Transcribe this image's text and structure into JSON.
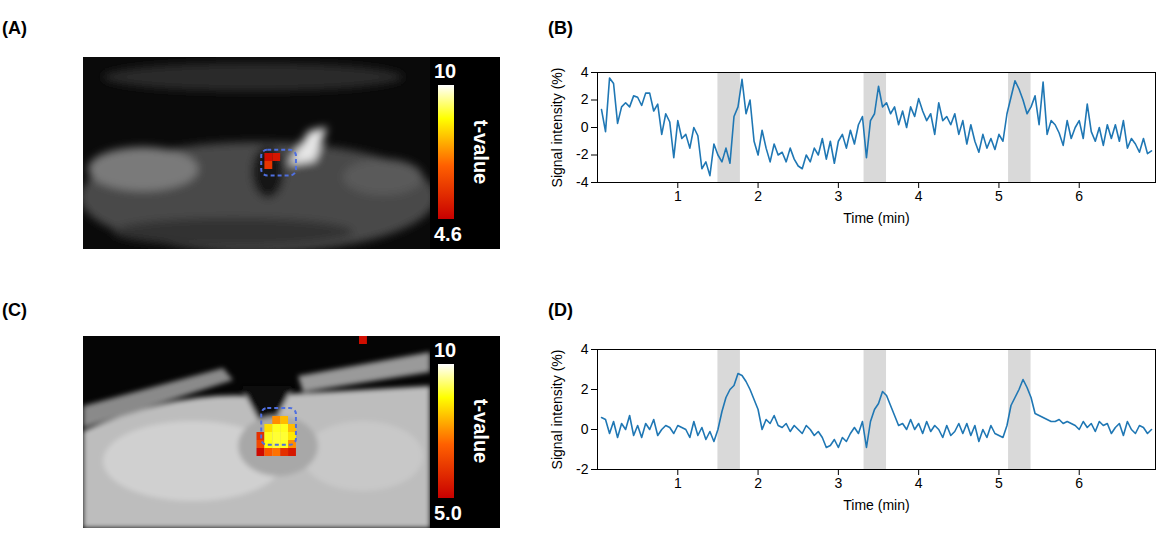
{
  "chart_data": [
    {
      "type": "image",
      "title": "(A)",
      "xlim": [
        0,
        44
      ],
      "ylim": [
        0,
        24
      ],
      "tick_labels": false,
      "cells": [
        {
          "col": 23,
          "row": 13,
          "t": 5.8
        },
        {
          "col": 23,
          "row": 12,
          "t": 4.9
        },
        {
          "col": 24,
          "row": 12,
          "t": 5.1
        }
      ],
      "roi": {
        "x": [
          22.6,
          27
        ],
        "y": [
          11.6,
          14.8
        ]
      },
      "colorbar": {
        "label": "t-value",
        "range": [
          4.6,
          10
        ],
        "ticks": [
          4.6,
          10
        ]
      }
    },
    {
      "type": "line",
      "title": "(B)",
      "xlabel": "Time (min)",
      "ylabel": "Signal intensity (%)",
      "xlim": [
        0,
        6.95
      ],
      "xticks": [
        1,
        2,
        3,
        4,
        5,
        6
      ],
      "ylim": [
        -4,
        4
      ],
      "yticks": [
        -4,
        -2,
        0,
        2,
        4
      ],
      "color": "#1f77b4",
      "shaded_intervals": [
        [
          1.5,
          1.78
        ],
        [
          3.32,
          3.6
        ],
        [
          5.12,
          5.4
        ]
      ],
      "x": [
        0.05,
        0.1,
        0.15,
        0.2,
        0.25,
        0.3,
        0.35,
        0.4,
        0.45,
        0.5,
        0.55,
        0.6,
        0.65,
        0.7,
        0.75,
        0.8,
        0.85,
        0.9,
        0.95,
        1,
        1.05,
        1.1,
        1.15,
        1.2,
        1.25,
        1.3,
        1.35,
        1.4,
        1.45,
        1.5,
        1.55,
        1.6,
        1.65,
        1.7,
        1.75,
        1.8,
        1.85,
        1.9,
        1.95,
        2,
        2.05,
        2.1,
        2.15,
        2.2,
        2.25,
        2.3,
        2.35,
        2.4,
        2.45,
        2.5,
        2.55,
        2.6,
        2.65,
        2.7,
        2.75,
        2.8,
        2.85,
        2.9,
        2.95,
        3,
        3.05,
        3.1,
        3.15,
        3.2,
        3.25,
        3.3,
        3.35,
        3.4,
        3.45,
        3.5,
        3.55,
        3.6,
        3.65,
        3.7,
        3.75,
        3.8,
        3.85,
        3.9,
        3.95,
        4,
        4.05,
        4.1,
        4.15,
        4.2,
        4.25,
        4.3,
        4.35,
        4.4,
        4.45,
        4.5,
        4.55,
        4.6,
        4.65,
        4.7,
        4.75,
        4.8,
        4.85,
        4.9,
        4.95,
        5,
        5.05,
        5.1,
        5.15,
        5.2,
        5.25,
        5.3,
        5.35,
        5.4,
        5.45,
        5.5,
        5.55,
        5.6,
        5.65,
        5.7,
        5.75,
        5.8,
        5.85,
        5.9,
        5.95,
        6,
        6.05,
        6.1,
        6.15,
        6.2,
        6.25,
        6.3,
        6.35,
        6.4,
        6.45,
        6.5,
        6.55,
        6.6,
        6.65,
        6.7,
        6.75,
        6.8,
        6.85,
        6.9
      ],
      "values": [
        1.3,
        -0.3,
        3.6,
        3.2,
        0.3,
        1.5,
        1.8,
        1.5,
        2.3,
        2.2,
        1.6,
        2.5,
        2.5,
        1.2,
        1.7,
        -0.5,
        1.0,
        0.4,
        -2.2,
        0.5,
        -0.8,
        -0.5,
        -1.5,
        0.0,
        -0.6,
        -3.0,
        -2.5,
        -3.5,
        -1.2,
        -2.0,
        -2.5,
        -1.5,
        -2.6,
        0.8,
        1.5,
        3.5,
        1.0,
        2.0,
        -1.0,
        -2.0,
        -0.2,
        -1.5,
        -2.5,
        -1.2,
        -2.0,
        -1.8,
        -2.5,
        -1.5,
        -2.3,
        -2.8,
        -3.0,
        -2.0,
        -2.5,
        -1.5,
        -2.0,
        -0.8,
        -2.3,
        -1.0,
        -2.6,
        -1.0,
        -0.5,
        -1.5,
        -0.2,
        -1.2,
        0.2,
        0.8,
        -2.2,
        0.5,
        1.0,
        3.0,
        1.5,
        1.8,
        1.0,
        1.5,
        0.2,
        1.2,
        0.0,
        1.5,
        0.8,
        2.1,
        1.2,
        0.5,
        1.0,
        -0.5,
        1.8,
        0.5,
        0.8,
        0.2,
        1.0,
        -0.5,
        0.5,
        -1.2,
        0.2,
        -1.0,
        -1.8,
        -0.5,
        -1.5,
        -0.8,
        -1.6,
        -0.5,
        -1.0,
        1.0,
        2.2,
        3.4,
        2.8,
        2.0,
        1.0,
        1.5,
        2.3,
        0.2,
        3.3,
        -0.5,
        0.5,
        0.2,
        -0.4,
        -1.3,
        0.5,
        -0.8,
        0.0,
        0.5,
        -0.8,
        1.7,
        -0.3,
        -1.0,
        0.0,
        -1.3,
        0.2,
        -0.8,
        0.2,
        -1.0,
        0.5,
        -1.5,
        -0.8,
        -1.2,
        -1.8,
        -0.8,
        -1.9,
        -1.7
      ]
    },
    {
      "type": "image",
      "title": "(C)",
      "xlim": [
        0,
        44
      ],
      "ylim": [
        0,
        24
      ],
      "tick_labels": false,
      "cells": [
        {
          "col": 24,
          "row": 10,
          "t": 7.5
        },
        {
          "col": 25,
          "row": 10,
          "t": 8.0
        },
        {
          "col": 23,
          "row": 11,
          "t": 8.4
        },
        {
          "col": 24,
          "row": 11,
          "t": 8.9
        },
        {
          "col": 25,
          "row": 11,
          "t": 8.9
        },
        {
          "col": 26,
          "row": 11,
          "t": 8.0
        },
        {
          "col": 22,
          "row": 12,
          "t": 6.0
        },
        {
          "col": 23,
          "row": 12,
          "t": 8.9
        },
        {
          "col": 24,
          "row": 12,
          "t": 9.0
        },
        {
          "col": 25,
          "row": 12,
          "t": 9.0
        },
        {
          "col": 26,
          "row": 12,
          "t": 8.5
        },
        {
          "col": 22,
          "row": 13,
          "t": 6.5
        },
        {
          "col": 23,
          "row": 13,
          "t": 8.8
        },
        {
          "col": 24,
          "row": 13,
          "t": 9.0
        },
        {
          "col": 25,
          "row": 13,
          "t": 8.9
        },
        {
          "col": 26,
          "row": 13,
          "t": 7.5
        },
        {
          "col": 22,
          "row": 14,
          "t": 5.2
        },
        {
          "col": 23,
          "row": 14,
          "t": 6.8
        },
        {
          "col": 24,
          "row": 14,
          "t": 7.2
        },
        {
          "col": 25,
          "row": 14,
          "t": 6.0
        },
        {
          "col": 26,
          "row": 14,
          "t": 5.5
        },
        {
          "col": 35,
          "row": 0,
          "t": 5.3
        }
      ],
      "roi": {
        "x": [
          22.6,
          27
        ],
        "y": [
          9,
          13.6
        ]
      },
      "colorbar": {
        "label": "t-value",
        "range": [
          5,
          10
        ],
        "ticks": [
          {
            "value": 5,
            "label": "5.0"
          },
          10
        ]
      }
    },
    {
      "type": "line",
      "title": "(D)",
      "xlabel": "Time (min)",
      "ylabel": "Signal intensity (%)",
      "xlim": [
        0,
        6.95
      ],
      "xticks": [
        1,
        2,
        3,
        4,
        5,
        6
      ],
      "ylim": [
        -2,
        4
      ],
      "yticks": [
        -2,
        0,
        2,
        4
      ],
      "color": "#1f77b4",
      "shaded_intervals": [
        [
          1.5,
          1.78
        ],
        [
          3.32,
          3.6
        ],
        [
          5.12,
          5.4
        ]
      ],
      "x": [
        0.05,
        0.1,
        0.15,
        0.2,
        0.25,
        0.3,
        0.35,
        0.4,
        0.45,
        0.5,
        0.55,
        0.6,
        0.65,
        0.7,
        0.75,
        0.8,
        0.85,
        0.9,
        0.95,
        1,
        1.05,
        1.1,
        1.15,
        1.2,
        1.25,
        1.3,
        1.35,
        1.4,
        1.45,
        1.5,
        1.55,
        1.6,
        1.65,
        1.7,
        1.75,
        1.8,
        1.85,
        1.9,
        1.95,
        2,
        2.05,
        2.1,
        2.15,
        2.2,
        2.25,
        2.3,
        2.35,
        2.4,
        2.45,
        2.5,
        2.55,
        2.6,
        2.65,
        2.7,
        2.75,
        2.8,
        2.85,
        2.9,
        2.95,
        3,
        3.05,
        3.1,
        3.15,
        3.2,
        3.25,
        3.3,
        3.35,
        3.4,
        3.45,
        3.5,
        3.55,
        3.6,
        3.65,
        3.7,
        3.75,
        3.8,
        3.85,
        3.9,
        3.95,
        4,
        4.05,
        4.1,
        4.15,
        4.2,
        4.25,
        4.3,
        4.35,
        4.4,
        4.45,
        4.5,
        4.55,
        4.6,
        4.65,
        4.7,
        4.75,
        4.8,
        4.85,
        4.9,
        4.95,
        5,
        5.05,
        5.1,
        5.15,
        5.2,
        5.25,
        5.3,
        5.35,
        5.4,
        5.45,
        5.5,
        5.55,
        5.6,
        5.65,
        5.7,
        5.75,
        5.8,
        5.85,
        5.9,
        5.95,
        6,
        6.05,
        6.1,
        6.15,
        6.2,
        6.25,
        6.3,
        6.35,
        6.4,
        6.45,
        6.5,
        6.55,
        6.6,
        6.65,
        6.7,
        6.75,
        6.8,
        6.85,
        6.9
      ],
      "values": [
        0.6,
        0.5,
        -0.2,
        0.4,
        -0.4,
        0.3,
        0.0,
        0.7,
        -0.3,
        0.2,
        -0.4,
        0.3,
        0.0,
        0.5,
        -0.3,
        0.0,
        0.2,
        0.1,
        -0.2,
        0.2,
        0.1,
        0.0,
        -0.4,
        0.4,
        -0.3,
        0.1,
        -0.5,
        -0.1,
        -0.6,
        0.0,
        0.9,
        1.6,
        2.0,
        2.2,
        2.8,
        2.7,
        2.4,
        2.0,
        1.5,
        1.0,
        0.0,
        0.5,
        0.3,
        0.7,
        0.2,
        0.1,
        0.3,
        -0.1,
        0.2,
        0.0,
        -0.2,
        0.2,
        0.0,
        -0.3,
        -0.1,
        -0.4,
        -0.9,
        -0.8,
        -0.5,
        -0.9,
        -0.4,
        -0.6,
        -0.2,
        0.1,
        -0.2,
        0.4,
        -0.9,
        0.4,
        1.0,
        1.3,
        1.9,
        1.7,
        1.2,
        0.7,
        0.2,
        0.3,
        0.0,
        0.5,
        0.0,
        0.3,
        -0.2,
        0.4,
        -0.1,
        0.2,
        0.0,
        -0.4,
        0.2,
        -0.3,
        -0.1,
        0.3,
        -0.2,
        0.3,
        -0.3,
        0.2,
        -0.6,
        0.0,
        -0.4,
        0.2,
        -0.2,
        -0.3,
        -0.4,
        0.2,
        1.2,
        1.6,
        2.0,
        2.5,
        2.1,
        1.6,
        0.8,
        0.7,
        0.6,
        0.5,
        0.4,
        0.4,
        0.5,
        0.3,
        0.4,
        0.3,
        0.2,
        0.0,
        0.4,
        0.1,
        0.3,
        -0.1,
        0.4,
        0.2,
        0.3,
        -0.2,
        0.1,
        0.3,
        -0.3,
        0.4,
        0.0,
        -0.2,
        0.2,
        0.1,
        -0.2,
        0.0
      ]
    }
  ]
}
